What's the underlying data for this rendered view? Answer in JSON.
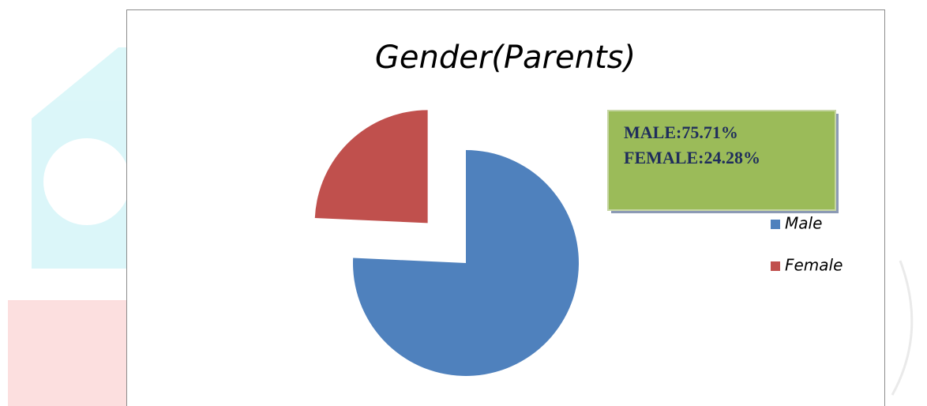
{
  "chart_data": {
    "type": "pie",
    "title": "Gender(Parents)",
    "categories": [
      "Male",
      "Female"
    ],
    "values": [
      75.71,
      24.28
    ],
    "value_labels": [
      "MALE:75.71%",
      "FEMALE:24.28%"
    ],
    "colors": [
      "#4f81bd",
      "#c0504d"
    ],
    "exploded": [
      false,
      true
    ],
    "legend": "right"
  }
}
